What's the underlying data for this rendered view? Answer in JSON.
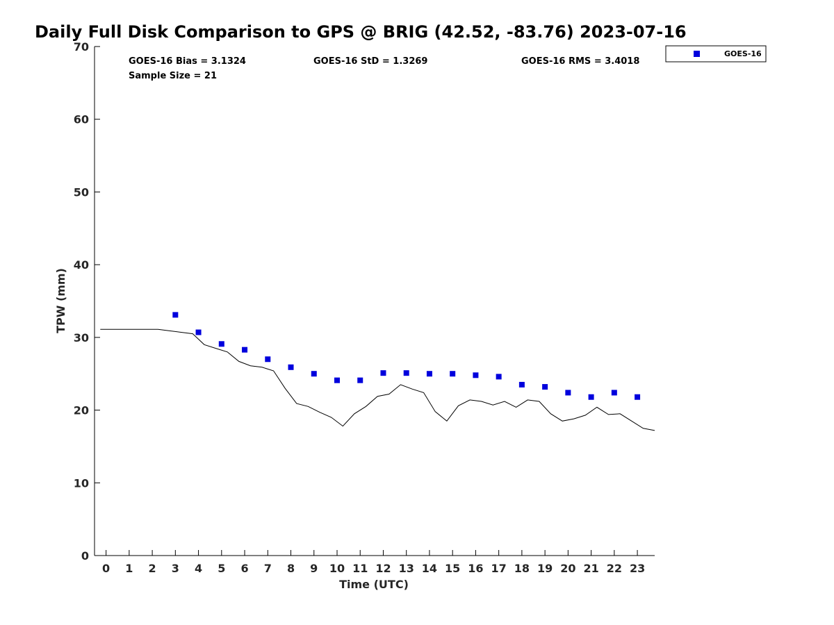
{
  "chart_data": {
    "type": "scatter",
    "title": "Daily Full Disk Comparison to GPS @ BRIG (42.52, -83.76) 2023-07-16",
    "xlabel": "Time (UTC)",
    "ylabel": "TPW (mm)",
    "xlim": [
      -0.5,
      23.75
    ],
    "ylim": [
      0,
      70
    ],
    "xticks": [
      0,
      1,
      2,
      3,
      4,
      5,
      6,
      7,
      8,
      9,
      10,
      11,
      12,
      13,
      14,
      15,
      16,
      17,
      18,
      19,
      20,
      21,
      22,
      23
    ],
    "yticks": [
      0,
      10,
      20,
      30,
      40,
      50,
      60,
      70
    ],
    "grid": false,
    "legend": {
      "position": "top-right",
      "entries": [
        "GOES-16"
      ]
    },
    "stats": {
      "bias": "GOES-16 Bias = 3.1324",
      "std": "GOES-16 StD = 1.3269",
      "rms": "GOES-16 RMS = 3.4018",
      "sample": "Sample Size = 21"
    },
    "series": [
      {
        "name": "GOES-16",
        "kind": "markers",
        "color": "#0000dd",
        "x": [
          3,
          4,
          5,
          6,
          7,
          8,
          9,
          10,
          11,
          12,
          13,
          14,
          15,
          16,
          17,
          18,
          19,
          20,
          21,
          22,
          23
        ],
        "y": [
          33.1,
          30.7,
          29.1,
          28.3,
          27.0,
          25.9,
          25.0,
          24.1,
          24.1,
          25.1,
          25.1,
          25.0,
          25.0,
          24.8,
          24.6,
          23.5,
          23.2,
          22.4,
          21.8,
          22.4,
          21.8
        ]
      },
      {
        "kind": "line",
        "color": "#000000",
        "x": [
          -0.25,
          0,
          1,
          2,
          2.25,
          2.75,
          3.25,
          3.75,
          4.25,
          4.75,
          5.25,
          5.75,
          6.25,
          6.75,
          7.25,
          7.75,
          8.25,
          8.75,
          9.25,
          9.75,
          10.25,
          10.75,
          11.25,
          11.75,
          12.25,
          12.75,
          13.25,
          13.75,
          14.25,
          14.75,
          15.25,
          15.75,
          16.25,
          16.75,
          17.25,
          17.75,
          18.25,
          18.75,
          19.25,
          19.75,
          20.25,
          20.75,
          21.25,
          21.75,
          22.25,
          22.75,
          23.25,
          23.75
        ],
        "y": [
          31.1,
          31.1,
          31.1,
          31.1,
          31.1,
          30.9,
          30.7,
          30.5,
          29.0,
          28.5,
          28.0,
          26.7,
          26.1,
          25.9,
          25.4,
          23.0,
          20.9,
          20.5,
          19.7,
          19.0,
          17.8,
          19.5,
          20.5,
          21.9,
          22.2,
          23.5,
          22.9,
          22.4,
          19.8,
          18.5,
          20.6,
          21.4,
          21.2,
          20.7,
          21.2,
          20.4,
          21.4,
          21.2,
          19.5,
          18.5,
          18.8,
          19.3,
          20.4,
          19.4,
          19.5,
          18.5,
          17.5,
          17.2
        ]
      }
    ]
  }
}
